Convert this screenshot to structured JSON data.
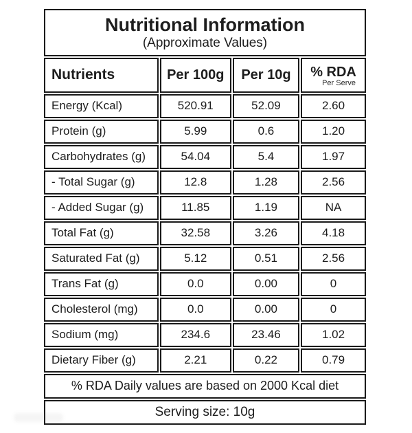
{
  "header": {
    "title": "Nutritional Information",
    "subtitle": "(Approximate Values)"
  },
  "table": {
    "columns": {
      "nutrient": "Nutrients",
      "per_100g": "Per 100g",
      "per_10g": "Per 10g",
      "rda": "% RDA",
      "rda_subnote": "Per Serve"
    },
    "rows": [
      {
        "nutrient": "Energy (Kcal)",
        "per_100g": "520.91",
        "per_10g": "52.09",
        "rda": "2.60"
      },
      {
        "nutrient": "Protein (g)",
        "per_100g": "5.99",
        "per_10g": "0.6",
        "rda": "1.20"
      },
      {
        "nutrient": "Carbohydrates (g)",
        "per_100g": "54.04",
        "per_10g": "5.4",
        "rda": "1.97"
      },
      {
        "nutrient": "- Total Sugar (g)",
        "per_100g": "12.8",
        "per_10g": "1.28",
        "rda": "2.56"
      },
      {
        "nutrient": "- Added Sugar (g)",
        "per_100g": "11.85",
        "per_10g": "1.19",
        "rda": "NA"
      },
      {
        "nutrient": "Total Fat (g)",
        "per_100g": "32.58",
        "per_10g": "3.26",
        "rda": "4.18"
      },
      {
        "nutrient": "Saturated Fat (g)",
        "per_100g": "5.12",
        "per_10g": "0.51",
        "rda": "2.56"
      },
      {
        "nutrient": "Trans Fat (g)",
        "per_100g": "0.0",
        "per_10g": "0.00",
        "rda": "0"
      },
      {
        "nutrient": "Cholesterol (mg)",
        "per_100g": "0.0",
        "per_10g": "0.00",
        "rda": "0"
      },
      {
        "nutrient": "Sodium (mg)",
        "per_100g": "234.6",
        "per_10g": "23.46",
        "rda": "1.02"
      },
      {
        "nutrient": "Dietary Fiber (g)",
        "per_100g": "2.21",
        "per_10g": "0.22",
        "rda": "0.79"
      }
    ],
    "footnote": "% RDA Daily values are based on 2000 Kcal diet",
    "serving_size": "Serving size: 10g"
  },
  "colors": {
    "border": "#1a1a1a",
    "text": "#1d1d1d",
    "background": "#ffffff"
  }
}
